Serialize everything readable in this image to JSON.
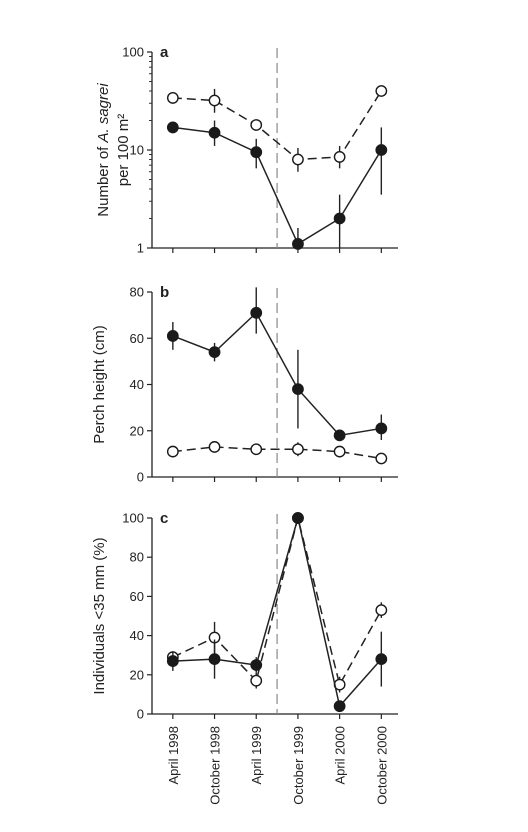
{
  "chart_data": [
    {
      "type": "line",
      "panel_label": "a",
      "ylabel_lines": [
        "Number of A. sagrei",
        "per 100 m²"
      ],
      "yscale": "log",
      "ylim": [
        1,
        100
      ],
      "yticks": [
        "1",
        "10",
        "100"
      ],
      "categories": [
        "April 1998",
        "October 1998",
        "April 1999",
        "October 1999",
        "April 2000",
        "October 2000"
      ],
      "x": [
        1998.25,
        1998.75,
        1999.25,
        1999.75,
        2000.25,
        2000.75
      ],
      "vline_x": 1999.5,
      "series": [
        {
          "marker": "open",
          "linestyle": "dashed",
          "values": [
            34,
            32,
            18,
            8,
            8.5,
            40
          ],
          "err_low": [
            null,
            24,
            null,
            6,
            6.5,
            null
          ],
          "err_high": [
            null,
            42,
            null,
            10.5,
            11,
            null
          ]
        },
        {
          "marker": "filled",
          "linestyle": "solid",
          "values": [
            17,
            15,
            9.5,
            1.1,
            2,
            10
          ],
          "err_low": [
            null,
            11,
            6.5,
            1,
            1,
            3.5
          ],
          "err_high": [
            null,
            20,
            13,
            1.6,
            3.5,
            17
          ]
        }
      ]
    },
    {
      "type": "line",
      "panel_label": "b",
      "ylabel": "Perch height (cm)",
      "ylim": [
        0,
        80
      ],
      "yticks": [
        "0",
        "20",
        "40",
        "60",
        "80"
      ],
      "categories": [
        "April 1998",
        "October 1998",
        "April 1999",
        "October 1999",
        "April 2000",
        "October 2000"
      ],
      "x": [
        1998.25,
        1998.75,
        1999.25,
        1999.75,
        2000.25,
        2000.75
      ],
      "vline_x": 1999.5,
      "series": [
        {
          "marker": "filled",
          "linestyle": "solid",
          "values": [
            61,
            54,
            71,
            38,
            18,
            21
          ],
          "err_low": [
            55,
            50,
            62,
            21,
            null,
            16
          ],
          "err_high": [
            67,
            58,
            82,
            55,
            null,
            27
          ]
        },
        {
          "marker": "open",
          "linestyle": "dashed",
          "values": [
            11,
            13,
            12,
            12,
            11,
            8
          ],
          "err_low": [
            null,
            null,
            null,
            9,
            null,
            null
          ],
          "err_high": [
            null,
            null,
            null,
            15,
            null,
            null
          ]
        }
      ]
    },
    {
      "type": "line",
      "panel_label": "c",
      "ylabel": "Individuals <35 mm (%)",
      "ylim": [
        0,
        100
      ],
      "yticks": [
        "0",
        "20",
        "40",
        "60",
        "80",
        "100"
      ],
      "categories": [
        "April 1998",
        "October 1998",
        "April 1999",
        "October 1999",
        "April 2000",
        "October 2000"
      ],
      "x": [
        1998.25,
        1998.75,
        1999.25,
        1999.75,
        2000.25,
        2000.75
      ],
      "vline_x": 1999.5,
      "series": [
        {
          "marker": "open",
          "linestyle": "dashed",
          "values": [
            29,
            39,
            17,
            100,
            15,
            53
          ],
          "err_low": [
            null,
            31,
            13,
            null,
            11,
            49
          ],
          "err_high": [
            null,
            47,
            21,
            null,
            19,
            57
          ]
        },
        {
          "marker": "filled",
          "linestyle": "solid",
          "values": [
            27,
            28,
            25,
            100,
            4,
            28
          ],
          "err_low": [
            22,
            18,
            21,
            null,
            null,
            14
          ],
          "err_high": [
            32,
            38,
            29,
            null,
            null,
            42
          ]
        }
      ]
    }
  ]
}
